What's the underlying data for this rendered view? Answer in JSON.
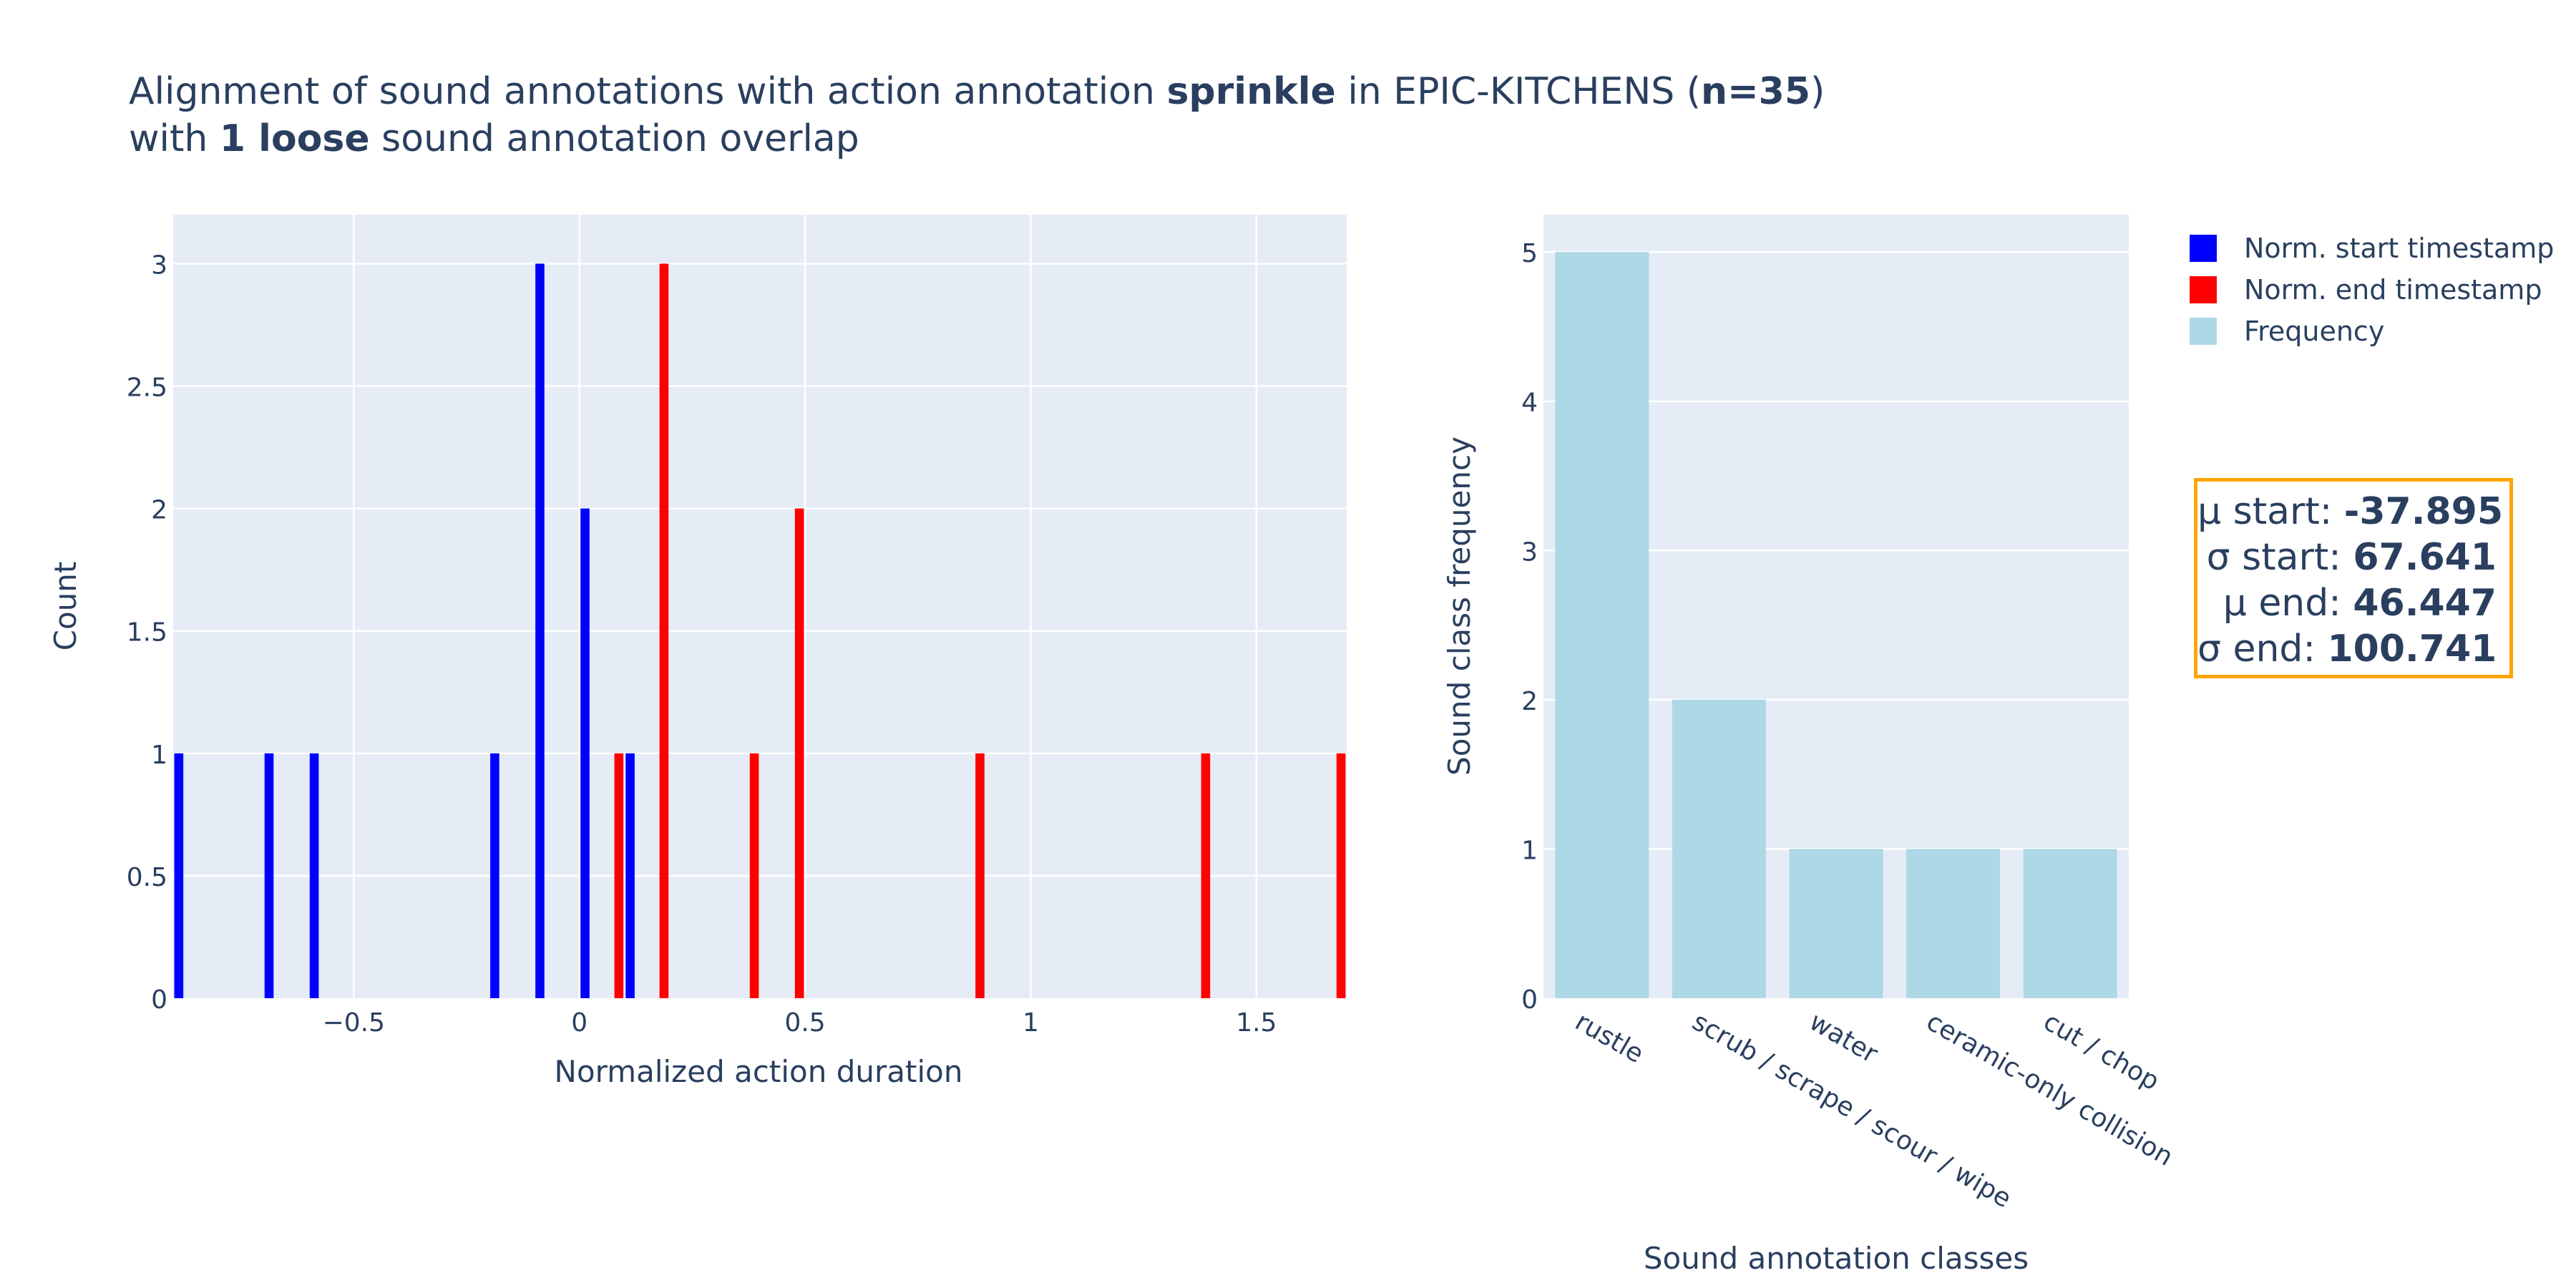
{
  "title": {
    "line1": {
      "pre": "Alignment of sound annotations with action annotation ",
      "bold1": "sprinkle",
      "mid": " in EPIC-KITCHENS (",
      "bold2": "n=35",
      "post": ")"
    },
    "line2": {
      "pre": "with ",
      "bold": "1 loose",
      "post": " sound annotation overlap"
    }
  },
  "legend": [
    {
      "label": "Norm. start timestamp",
      "color": "#0000ff"
    },
    {
      "label": "Norm. end timestamp",
      "color": "#ff0000"
    },
    {
      "label": "Frequency",
      "color": "#add8e6"
    }
  ],
  "stats": [
    {
      "label": "μ start: ",
      "value": "-37.895"
    },
    {
      "label": "σ start: ",
      "value": "67.641"
    },
    {
      "label": "μ end: ",
      "value": "46.447"
    },
    {
      "label": "σ end: ",
      "value": "100.741"
    }
  ],
  "chart_data": [
    {
      "type": "bar",
      "xlabel": "Normalized action duration",
      "ylabel": "Count",
      "xlim": [
        -0.9,
        1.7
      ],
      "ylim": [
        0,
        3.2
      ],
      "xticks": [
        {
          "value": -0.5,
          "label": "−0.5"
        },
        {
          "value": 0,
          "label": "0"
        },
        {
          "value": 0.5,
          "label": "0.5"
        },
        {
          "value": 1,
          "label": "1"
        },
        {
          "value": 1.5,
          "label": "1.5"
        }
      ],
      "yticks": [
        {
          "value": 0,
          "label": "0"
        },
        {
          "value": 0.5,
          "label": "0.5"
        },
        {
          "value": 1,
          "label": "1"
        },
        {
          "value": 1.5,
          "label": "1.5"
        },
        {
          "value": 2,
          "label": "2"
        },
        {
          "value": 2.5,
          "label": "2.5"
        },
        {
          "value": 3,
          "label": "3"
        }
      ],
      "bin_width": 0.05,
      "grid": true,
      "series": [
        {
          "name": "Norm. start timestamp",
          "color": "#0000ff",
          "x": [
            -0.875,
            -0.675,
            -0.575,
            -0.175,
            -0.075,
            0.025,
            0.125
          ],
          "values": [
            1,
            1,
            1,
            1,
            3,
            2,
            1
          ]
        },
        {
          "name": "Norm. end timestamp",
          "color": "#ff0000",
          "x": [
            0.075,
            0.175,
            0.375,
            0.475,
            0.875,
            1.375,
            1.675
          ],
          "values": [
            1,
            3,
            1,
            2,
            1,
            1,
            1
          ]
        }
      ]
    },
    {
      "type": "bar",
      "xlabel": "Sound annotation classes",
      "ylabel": "Sound class frequency",
      "ylim": [
        0,
        5.25
      ],
      "yticks": [
        {
          "value": 0,
          "label": "0"
        },
        {
          "value": 1,
          "label": "1"
        },
        {
          "value": 2,
          "label": "2"
        },
        {
          "value": 3,
          "label": "3"
        },
        {
          "value": 4,
          "label": "4"
        },
        {
          "value": 5,
          "label": "5"
        }
      ],
      "grid": true,
      "categories": [
        "rustle",
        "scrub / scrape / scour / wipe",
        "water",
        "ceramic-only collision",
        "cut / chop"
      ],
      "series": [
        {
          "name": "Frequency",
          "color": "#add8e6",
          "values": [
            5,
            2,
            1,
            1,
            1
          ]
        }
      ]
    }
  ]
}
